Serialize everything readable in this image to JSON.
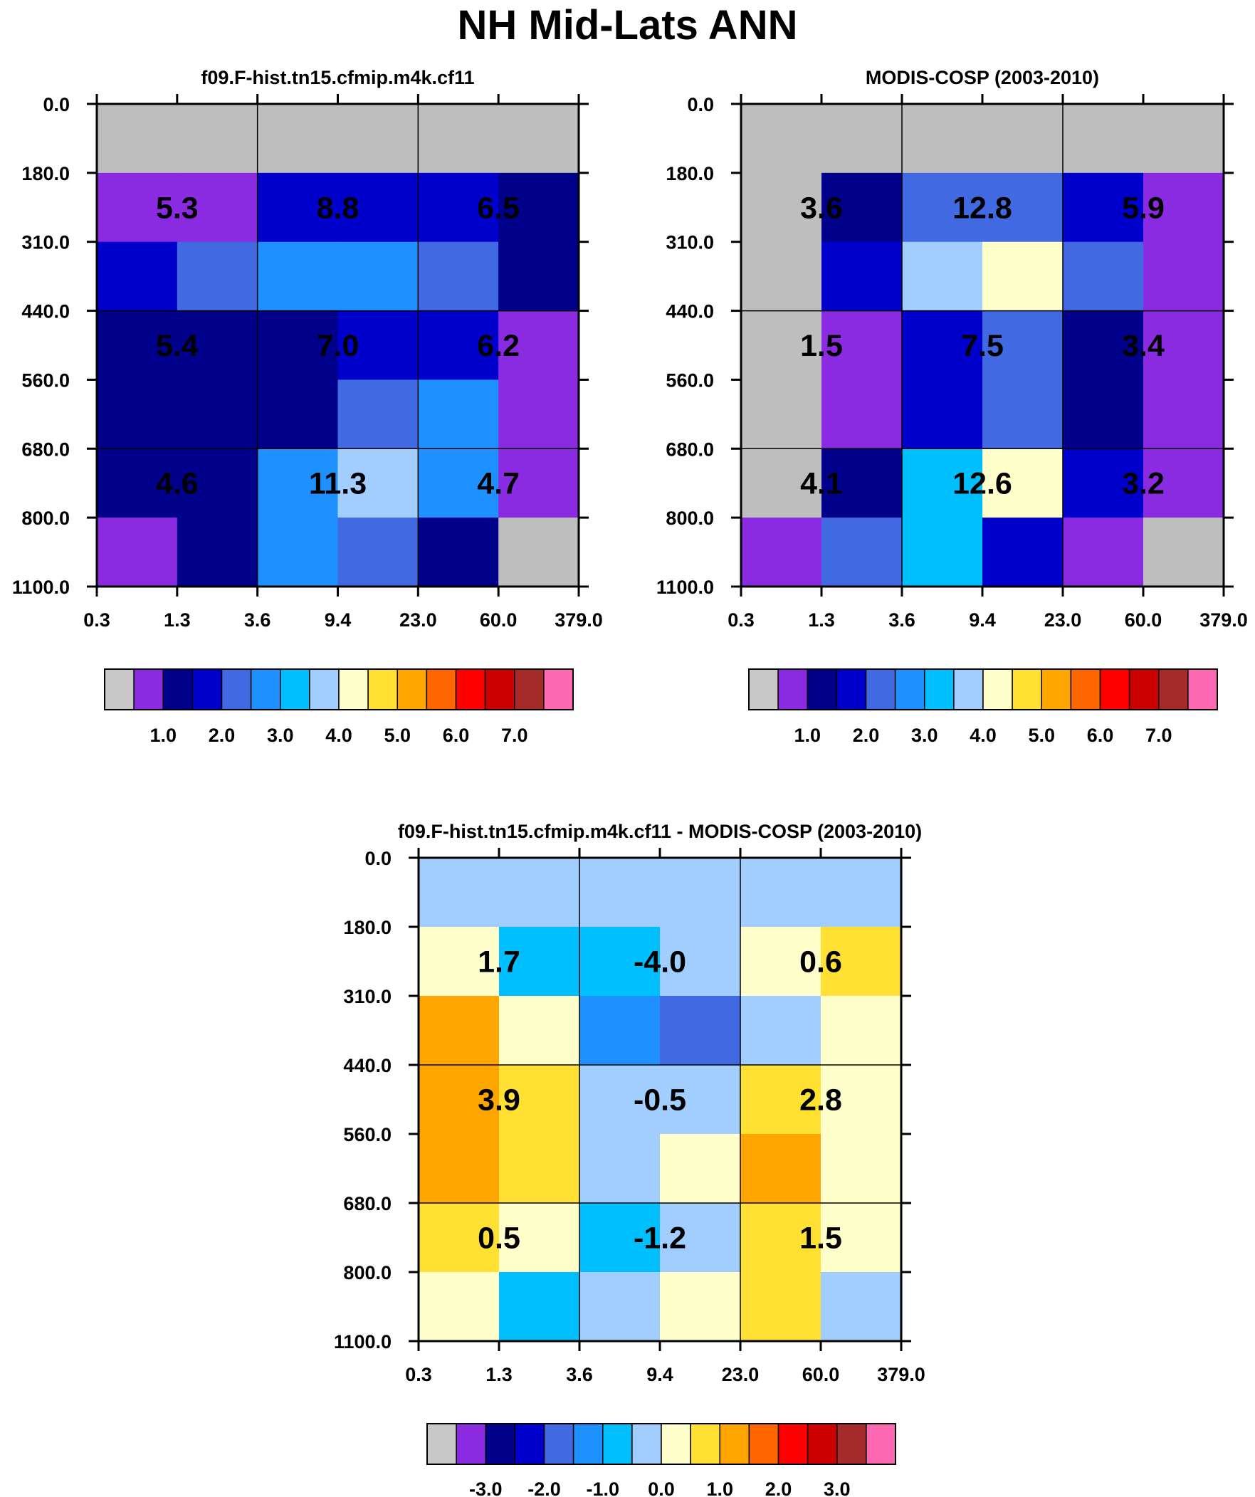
{
  "title": "NH Mid-Lats ANN",
  "chart_data": [
    {
      "type": "heatmap",
      "title": "f09.F-hist.tn15.cfmip.m4k.cf11",
      "x_tick_labels": [
        "0.3",
        "1.3",
        "3.6",
        "9.4",
        "23.0",
        "60.0",
        "379.0"
      ],
      "y_tick_labels": [
        "0.0",
        "180.0",
        "310.0",
        "440.0",
        "560.0",
        "680.0",
        "800.0",
        "1100.0"
      ],
      "cell_colors": [
        [
          "#bebebe",
          "#bebebe",
          "#bebebe",
          "#bebebe",
          "#bebebe",
          "#bebebe"
        ],
        [
          "#8a2be2",
          "#8a2be2",
          "#0000cd",
          "#0000cd",
          "#0000cd",
          "#00008b"
        ],
        [
          "#0000cd",
          "#4169e1",
          "#1e90ff",
          "#1e90ff",
          "#4169e1",
          "#00008b"
        ],
        [
          "#00008b",
          "#00008b",
          "#00008b",
          "#0000cd",
          "#0000cd",
          "#8a2be2"
        ],
        [
          "#00008b",
          "#00008b",
          "#00008b",
          "#4169e1",
          "#1e90ff",
          "#8a2be2"
        ],
        [
          "#00008b",
          "#00008b",
          "#1e90ff",
          "#a2cdff",
          "#1e90ff",
          "#8a2be2"
        ],
        [
          "#8a2be2",
          "#00008b",
          "#1e90ff",
          "#4169e1",
          "#00008b",
          "#bebebe"
        ]
      ],
      "annotations": [
        [
          "5.3",
          "8.8",
          "6.5"
        ],
        [
          "5.4",
          "7.0",
          "6.2"
        ],
        [
          "4.6",
          "11.3",
          "4.7"
        ]
      ],
      "colorbar": {
        "colors": [
          "#c8c8c8",
          "#8a2be2",
          "#00008b",
          "#0000cd",
          "#4169e1",
          "#1e90ff",
          "#00bfff",
          "#a2cdff",
          "#ffffcc",
          "#ffe033",
          "#ffa500",
          "#ff6600",
          "#ff0000",
          "#cd0000",
          "#a52a2a",
          "#ff69b4"
        ],
        "labels": [
          "1.0",
          "2.0",
          "3.0",
          "4.0",
          "5.0",
          "6.0",
          "7.0"
        ],
        "label_start_boundary": 2
      }
    },
    {
      "type": "heatmap",
      "title": "MODIS-COSP (2003-2010)",
      "x_tick_labels": [
        "0.3",
        "1.3",
        "3.6",
        "9.4",
        "23.0",
        "60.0",
        "379.0"
      ],
      "y_tick_labels": [
        "0.0",
        "180.0",
        "310.0",
        "440.0",
        "560.0",
        "680.0",
        "800.0",
        "1100.0"
      ],
      "cell_colors": [
        [
          "#bebebe",
          "#bebebe",
          "#bebebe",
          "#bebebe",
          "#bebebe",
          "#bebebe"
        ],
        [
          "#bebebe",
          "#00008b",
          "#4169e1",
          "#4169e1",
          "#0000cd",
          "#8a2be2"
        ],
        [
          "#bebebe",
          "#0000cd",
          "#a2cdff",
          "#ffffcc",
          "#4169e1",
          "#8a2be2"
        ],
        [
          "#bebebe",
          "#8a2be2",
          "#0000cd",
          "#4169e1",
          "#00008b",
          "#8a2be2"
        ],
        [
          "#bebebe",
          "#8a2be2",
          "#0000cd",
          "#4169e1",
          "#00008b",
          "#8a2be2"
        ],
        [
          "#bebebe",
          "#00008b",
          "#00bfff",
          "#ffffcc",
          "#0000cd",
          "#8a2be2"
        ],
        [
          "#8a2be2",
          "#4169e1",
          "#00bfff",
          "#0000cd",
          "#8a2be2",
          "#bebebe"
        ]
      ],
      "annotations": [
        [
          "3.6",
          "12.8",
          "5.9"
        ],
        [
          "1.5",
          "7.5",
          "3.4"
        ],
        [
          "4.1",
          "12.6",
          "3.2"
        ]
      ],
      "colorbar": {
        "colors": [
          "#c8c8c8",
          "#8a2be2",
          "#00008b",
          "#0000cd",
          "#4169e1",
          "#1e90ff",
          "#00bfff",
          "#a2cdff",
          "#ffffcc",
          "#ffe033",
          "#ffa500",
          "#ff6600",
          "#ff0000",
          "#cd0000",
          "#a52a2a",
          "#ff69b4"
        ],
        "labels": [
          "1.0",
          "2.0",
          "3.0",
          "4.0",
          "5.0",
          "6.0",
          "7.0"
        ],
        "label_start_boundary": 2
      }
    },
    {
      "type": "heatmap",
      "title": "f09.F-hist.tn15.cfmip.m4k.cf11 - MODIS-COSP (2003-2010)",
      "x_tick_labels": [
        "0.3",
        "1.3",
        "3.6",
        "9.4",
        "23.0",
        "60.0",
        "379.0"
      ],
      "y_tick_labels": [
        "0.0",
        "180.0",
        "310.0",
        "440.0",
        "560.0",
        "680.0",
        "800.0",
        "1100.0"
      ],
      "cell_colors": [
        [
          "#a2cdff",
          "#a2cdff",
          "#a2cdff",
          "#a2cdff",
          "#a2cdff",
          "#a2cdff"
        ],
        [
          "#ffffcc",
          "#00bfff",
          "#00bfff",
          "#a2cdff",
          "#ffffcc",
          "#ffe033"
        ],
        [
          "#ffa500",
          "#ffffcc",
          "#1e90ff",
          "#4169e1",
          "#a2cdff",
          "#ffffcc"
        ],
        [
          "#ffa500",
          "#ffe033",
          "#a2cdff",
          "#a2cdff",
          "#ffe033",
          "#ffffcc"
        ],
        [
          "#ffa500",
          "#ffe033",
          "#a2cdff",
          "#ffffcc",
          "#ffa500",
          "#ffffcc"
        ],
        [
          "#ffe033",
          "#ffffcc",
          "#00bfff",
          "#a2cdff",
          "#ffe033",
          "#ffffcc"
        ],
        [
          "#ffffcc",
          "#00bfff",
          "#a2cdff",
          "#ffffcc",
          "#ffe033",
          "#a2cdff"
        ]
      ],
      "annotations": [
        [
          "1.7",
          "-4.0",
          "0.6"
        ],
        [
          "3.9",
          "-0.5",
          "2.8"
        ],
        [
          "0.5",
          "-1.2",
          "1.5"
        ]
      ],
      "colorbar": {
        "colors": [
          "#c8c8c8",
          "#8a2be2",
          "#00008b",
          "#0000cd",
          "#4169e1",
          "#1e90ff",
          "#00bfff",
          "#a2cdff",
          "#ffffcc",
          "#ffe033",
          "#ffa500",
          "#ff6600",
          "#ff0000",
          "#cd0000",
          "#a52a2a",
          "#ff69b4"
        ],
        "labels": [
          "-3.0",
          "-2.0",
          "-1.0",
          "0.0",
          "1.0",
          "2.0",
          "3.0"
        ],
        "label_start_boundary": 2
      }
    }
  ]
}
